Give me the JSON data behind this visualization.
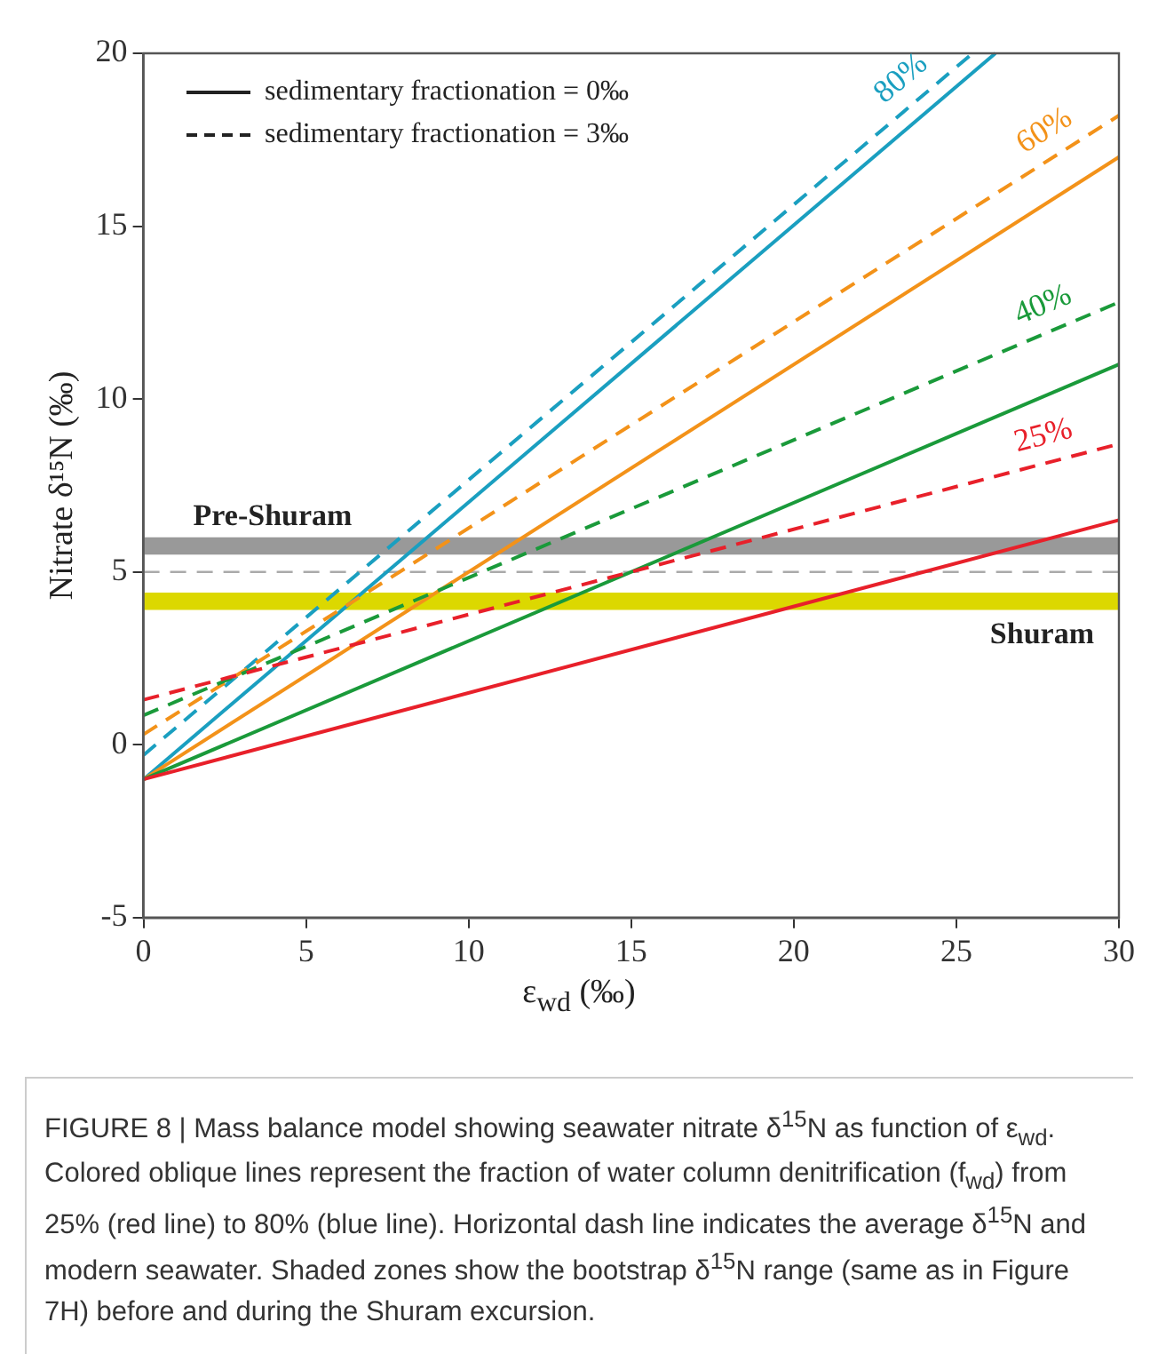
{
  "chart_data": {
    "type": "line",
    "ylabel": "Nitrate δ¹⁵N (‰)",
    "xlabel": "ε$_{wd}$ (‰)",
    "xlim": [
      0,
      30
    ],
    "xticks": [
      0,
      5,
      10,
      15,
      20,
      25,
      30
    ],
    "ylim": [
      -5,
      20
    ],
    "yticks": [
      -5,
      0,
      5,
      10,
      15,
      20
    ],
    "grid": false,
    "legend": false,
    "marker": "none",
    "series": [
      {
        "color": "#e8202a",
        "line_style": "solid",
        "x": [
          0,
          30
        ],
        "values": [
          -1,
          6.5
        ]
      },
      {
        "name": "25%",
        "color": "#e8202a",
        "line_style": "dashed",
        "x": [
          0,
          30
        ],
        "values": [
          1.3,
          8.7
        ]
      },
      {
        "color": "#1a9a3a",
        "line_style": "solid",
        "x": [
          0,
          30
        ],
        "values": [
          -1,
          11
        ]
      },
      {
        "name": "40%",
        "color": "#1a9a3a",
        "line_style": "dashed",
        "x": [
          0,
          30
        ],
        "values": [
          0.85,
          12.8
        ]
      },
      {
        "color": "#f39219",
        "line_style": "solid",
        "x": [
          0,
          30
        ],
        "values": [
          -1,
          17
        ]
      },
      {
        "name": "60%",
        "color": "#f39219",
        "line_style": "dashed",
        "x": [
          0,
          30
        ],
        "values": [
          0.3,
          18.2
        ]
      },
      {
        "color": "#1a9fc0",
        "line_style": "solid",
        "x": [
          0,
          26.2
        ],
        "values": [
          -1,
          20
        ]
      },
      {
        "name": "80%",
        "color": "#1a9fc0",
        "line_style": "dashed",
        "x": [
          0,
          25.5
        ],
        "values": [
          -0.3,
          20
        ]
      }
    ],
    "bands": [
      {
        "axis": "y",
        "from": 5.5,
        "to": 6,
        "label": "Pre-Shuram",
        "color": "#999999"
      },
      {
        "axis": "y",
        "from": 3.9,
        "to": 4.4,
        "label": "Shuram",
        "color": "#dcd800"
      }
    ],
    "ref_lines": [
      {
        "axis": "y",
        "value": 5,
        "color": "#aaaaaa",
        "line_style": "dashed"
      }
    ],
    "annotations": [
      "sedimentary fractionation = 0‰",
      "sedimentary fractionation = 3‰",
      "FIGURE 8 | Mass balance model showing seawater nitrate δ$^{15}$N as function of ε$_{wd}$. Colored oblique lines represent the fraction of water column denitrification (f$_{wd}$) from 25% (red line) to 80% (blue line). Horizontal dash line indicates the average δ$^{15}$N and modern seawater. Shaded zones show the bootstrap δ$^{15}$N range (same as in Figure 7H) before and during the Shuram excursion."
    ]
  }
}
